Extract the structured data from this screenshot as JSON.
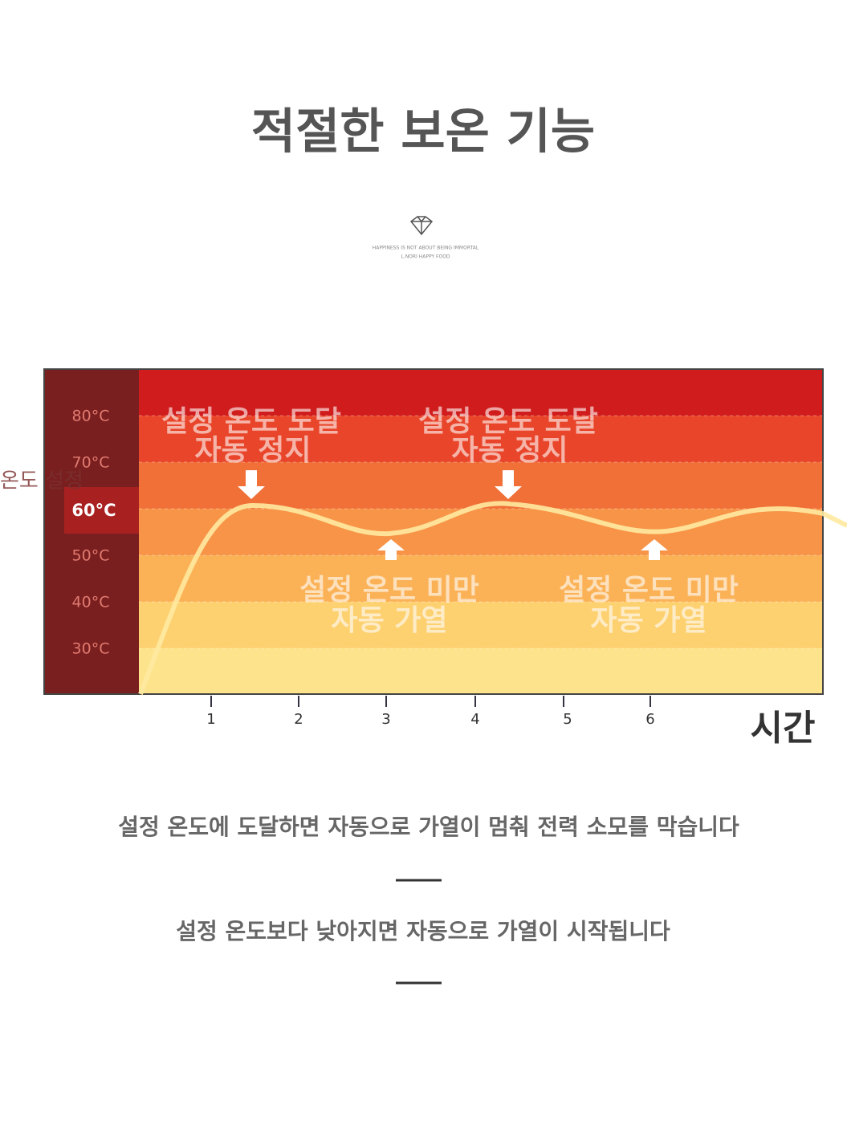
{
  "header": {
    "title": "적절한 보온 기능"
  },
  "logo": {
    "lines": [
      "HAPPINESS IS NOT ABOUT BEING IMMORTAL",
      "L.NORI HAPPY FOOD"
    ]
  },
  "diagram": {
    "side_label": "온도 설정",
    "y_labels": [
      "80°C",
      "70°C",
      "60°C",
      "50°C",
      "40°C",
      "30°C"
    ],
    "x_ticks": [
      1,
      2,
      3,
      4,
      5,
      6
    ],
    "x_label": "시간",
    "stop_notes": [
      [
        "설정 온도 도달",
        "자동 정지"
      ],
      [
        "설정 온도 도달",
        "자동 정지"
      ]
    ],
    "heat_notes": [
      [
        "설정 온도 미만",
        "자동 가열"
      ],
      [
        "설정 온도 미만",
        "자동 가열"
      ]
    ]
  },
  "notes": [
    "설정 온도에 도달하면 자동으로 가열이 멈춰 전력 소모를 막습니다",
    "설정 온도보다 낮아지면 자동으로 가열이 시작됩니다"
  ]
}
